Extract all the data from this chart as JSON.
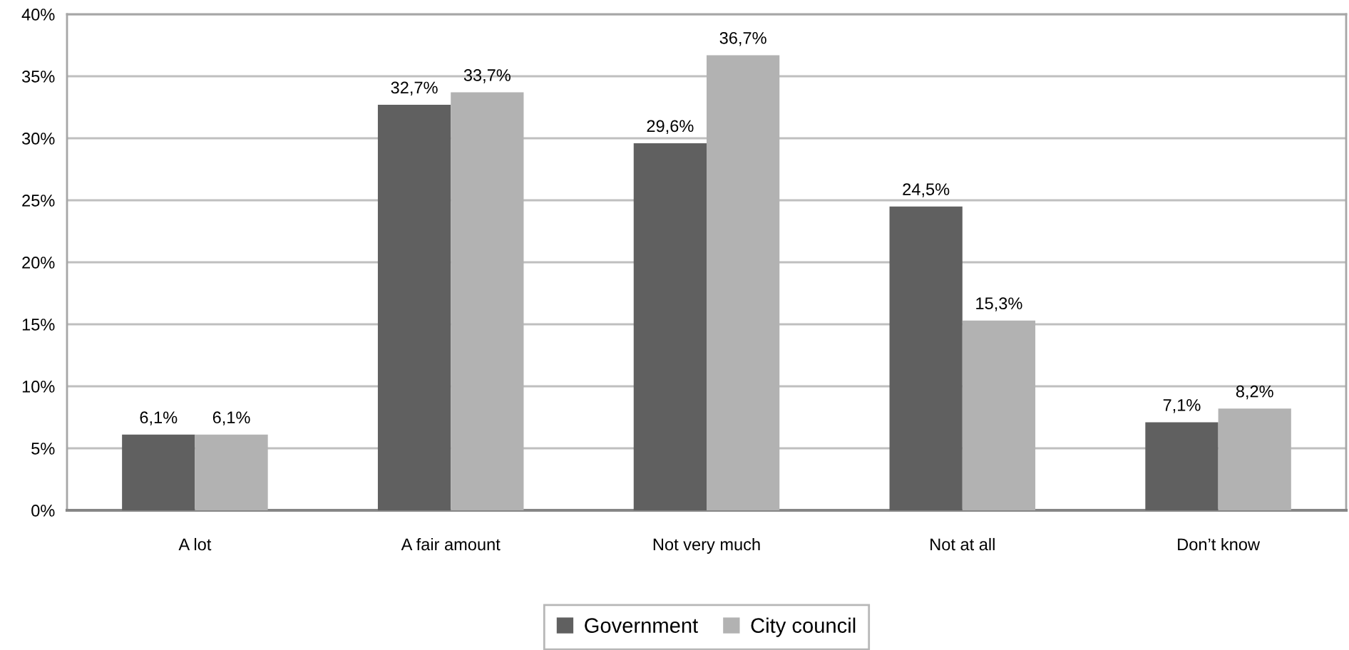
{
  "chart_data": {
    "type": "bar",
    "categories": [
      "A lot",
      "A fair amount",
      "Not very much",
      "Not at all",
      "Don’t know"
    ],
    "series": [
      {
        "name": "Government",
        "color": "#606060",
        "values": [
          6.1,
          32.7,
          29.6,
          24.5,
          7.1
        ],
        "value_labels": [
          "6,1%",
          "32,7%",
          "29,6%",
          "24,5%",
          "7,1%"
        ]
      },
      {
        "name": "City council",
        "color": "#b2b2b2",
        "values": [
          6.1,
          33.7,
          36.7,
          15.3,
          8.2
        ],
        "value_labels": [
          "6,1%",
          "33,7%",
          "36,7%",
          "15,3%",
          "8,2%"
        ]
      }
    ],
    "ylim": [
      0,
      40
    ],
    "yticks": [
      {
        "value": 0,
        "label": "0%"
      },
      {
        "value": 5,
        "label": "5%"
      },
      {
        "value": 10,
        "label": "10%"
      },
      {
        "value": 15,
        "label": "15%"
      },
      {
        "value": 20,
        "label": "20%"
      },
      {
        "value": 25,
        "label": "25%"
      },
      {
        "value": 30,
        "label": "30%"
      },
      {
        "value": 35,
        "label": "35%"
      },
      {
        "value": 40,
        "label": "40%"
      }
    ],
    "grid": "y",
    "legend": "bottom"
  }
}
